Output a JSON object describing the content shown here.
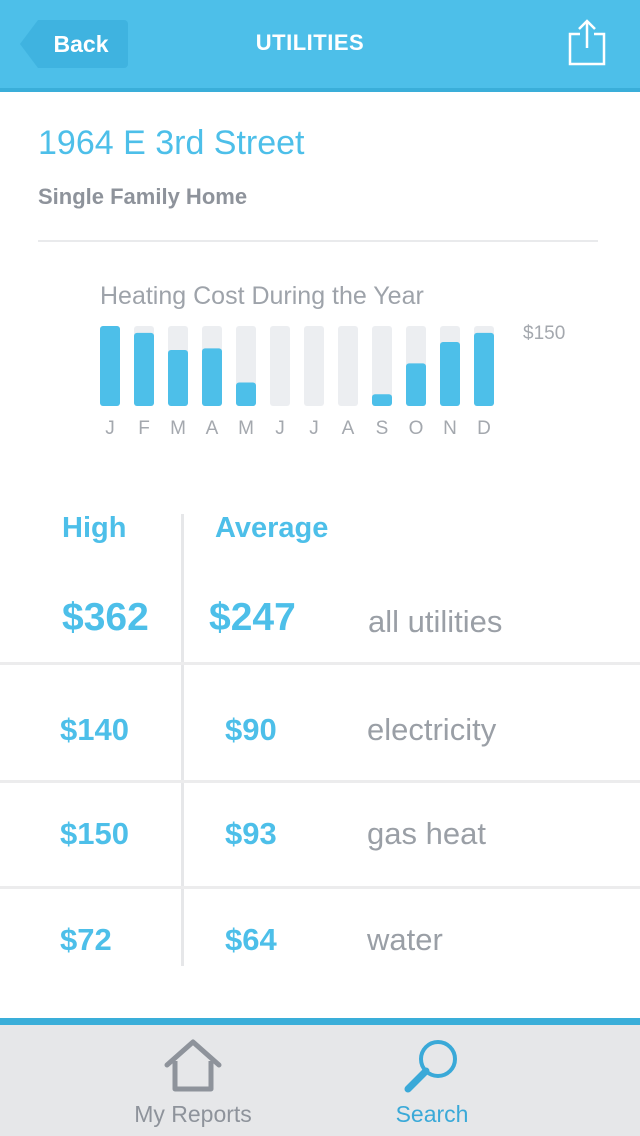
{
  "header": {
    "back_label": "Back",
    "title": "UTILITIES"
  },
  "property": {
    "address": "1964 E 3rd Street",
    "type": "Single Family Home"
  },
  "chart_data": {
    "type": "bar",
    "title": "Heating Cost During the Year",
    "categories": [
      "J",
      "F",
      "M",
      "A",
      "M",
      "J",
      "J",
      "A",
      "S",
      "O",
      "N",
      "D"
    ],
    "values": [
      150,
      137,
      105,
      108,
      44,
      0,
      0,
      0,
      22,
      80,
      120,
      137
    ],
    "ymax_label": "$150",
    "ylim": [
      0,
      150
    ],
    "colors": {
      "bar": "#4dbfe9",
      "track": "#eceef1"
    }
  },
  "table": {
    "head_high": "High",
    "head_avg": "Average",
    "total": {
      "high": "$362",
      "avg": "$247",
      "label": "all utilities"
    },
    "rows": [
      {
        "high": "$140",
        "avg": "$90",
        "label": "electricity"
      },
      {
        "high": "$150",
        "avg": "$93",
        "label": "gas heat"
      },
      {
        "high": "$72",
        "avg": "$64",
        "label": "water"
      }
    ]
  },
  "nav": {
    "reports_label": "My Reports",
    "search_label": "Search",
    "reports_icon": "house-icon",
    "search_icon": "magnifier-icon"
  },
  "colors": {
    "accent": "#4dbfe9",
    "accent_dark": "#3aaed9",
    "muted": "#8e939b"
  }
}
